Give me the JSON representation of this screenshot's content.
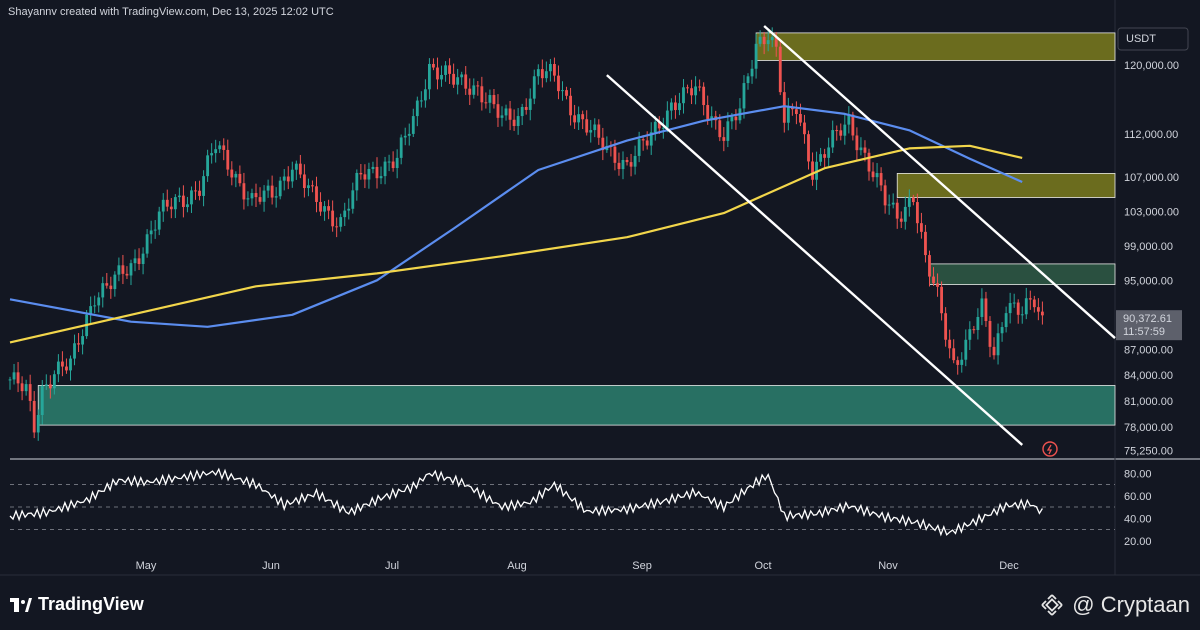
{
  "header": {
    "attribution": "Shayannv created with TradingView.com, Dec 13, 2025 12:02 UTC"
  },
  "currency_label": "USDT",
  "last_price_label": "90,372.61",
  "countdown_label": "11:57:59",
  "footer": {
    "brand": "TradingView",
    "watermark": "@ Cryptaan"
  },
  "colors": {
    "background": "#131722",
    "up_candle": "#26a69a",
    "down_candle": "#ef5350",
    "ma_blue": "#5b8def",
    "ma_yellow": "#f2d64b",
    "supply_zone": "#8a8a1e",
    "demand_zone": "#2b7a6a",
    "channel": "#ffffff"
  },
  "chart_data": [
    {
      "type": "candlestick",
      "price_axis": {
        "ticks": [
          120000,
          112000,
          107000,
          103000,
          99000,
          95000,
          87000,
          84000,
          81000,
          78000,
          75250
        ],
        "tick_labels": [
          "120,000.00",
          "112,000.00",
          "107,000.00",
          "103,000.00",
          "99,000.00",
          "95,000.00",
          "87,000.00",
          "84,000.00",
          "81,000.00",
          "78,000.00",
          "75,250.00"
        ],
        "range": [
          74500,
          124500
        ]
      },
      "time_axis": {
        "months": [
          "May",
          "Jun",
          "Jul",
          "Aug",
          "Sep",
          "Oct",
          "Nov",
          "Dec"
        ],
        "range": [
          "2025-04-01",
          "2025-12-13"
        ]
      },
      "series": [
        {
          "name": "",
          "kind": "close",
          "x": [
            "2025-04-01",
            "2025-04-05",
            "2025-04-07",
            "2025-04-09",
            "2025-04-12",
            "2025-04-16",
            "2025-04-22",
            "2025-04-26",
            "2025-05-01",
            "2025-05-08",
            "2025-05-12",
            "2025-05-18",
            "2025-05-22",
            "2025-05-26",
            "2025-05-31",
            "2025-06-05",
            "2025-06-10",
            "2025-06-15",
            "2025-06-22",
            "2025-06-27",
            "2025-07-03",
            "2025-07-06",
            "2025-07-10",
            "2025-07-14",
            "2025-07-20",
            "2025-07-26",
            "2025-08-01",
            "2025-08-05",
            "2025-08-10",
            "2025-08-14",
            "2025-08-19",
            "2025-08-25",
            "2025-09-01",
            "2025-09-06",
            "2025-09-12",
            "2025-09-18",
            "2025-09-25",
            "2025-09-29",
            "2025-10-03",
            "2025-10-06",
            "2025-10-08",
            "2025-10-10",
            "2025-10-13",
            "2025-10-17",
            "2025-10-22",
            "2025-10-26",
            "2025-10-30",
            "2025-11-04",
            "2025-11-07",
            "2025-11-11",
            "2025-11-14",
            "2025-11-17",
            "2025-11-21",
            "2025-11-24",
            "2025-11-28",
            "2025-12-01",
            "2025-12-04",
            "2025-12-08",
            "2025-12-11",
            "2025-12-13"
          ],
          "y": [
            83500,
            82000,
            78000,
            82500,
            84500,
            85000,
            93500,
            94500,
            96500,
            102500,
            104000,
            105800,
            110500,
            108000,
            104000,
            105000,
            108500,
            104500,
            101800,
            107000,
            108500,
            109000,
            113500,
            120000,
            118000,
            117500,
            113500,
            114000,
            119000,
            118500,
            114500,
            111000,
            108500,
            111000,
            115500,
            117000,
            112000,
            114500,
            122500,
            124000,
            121500,
            113000,
            115000,
            108000,
            111000,
            113500,
            109500,
            104000,
            102500,
            105000,
            97000,
            93000,
            85500,
            87500,
            91500,
            86500,
            92500,
            91000,
            92500,
            90372
          ]
        },
        {
          "name": "",
          "kind": "moving_average_blue",
          "x": [
            "2025-04-01",
            "2025-05-01",
            "2025-05-20",
            "2025-06-10",
            "2025-07-01",
            "2025-07-20",
            "2025-08-10",
            "2025-09-01",
            "2025-09-20",
            "2025-10-10",
            "2025-10-25",
            "2025-11-10",
            "2025-11-25",
            "2025-12-08"
          ],
          "y": [
            92800,
            90200,
            89600,
            91000,
            95000,
            101000,
            107800,
            111200,
            113500,
            115200,
            114300,
            112400,
            109100,
            106400
          ]
        },
        {
          "name": "",
          "kind": "moving_average_yellow",
          "x": [
            "2025-04-01",
            "2025-05-01",
            "2025-06-01",
            "2025-07-01",
            "2025-08-01",
            "2025-09-01",
            "2025-09-25",
            "2025-10-20",
            "2025-11-10",
            "2025-11-25",
            "2025-12-08"
          ],
          "y": [
            87800,
            91000,
            94300,
            95800,
            97800,
            100000,
            102800,
            108000,
            110300,
            110600,
            109200
          ]
        }
      ],
      "zones": [
        {
          "kind": "supply",
          "from": "2025-10-03",
          "to": "2025-12-31",
          "low": 120500,
          "high": 123700
        },
        {
          "kind": "supply",
          "from": "2025-11-07",
          "to": "2025-12-31",
          "low": 104600,
          "high": 107400
        },
        {
          "kind": "resistance",
          "from": "2025-11-15",
          "to": "2025-12-31",
          "low": 94500,
          "high": 96900
        },
        {
          "kind": "demand",
          "from": "2025-04-08",
          "to": "2025-12-31",
          "low": 78200,
          "high": 82800
        }
      ],
      "channel_lines": [
        {
          "x": [
            "2025-10-05",
            "2025-12-31"
          ],
          "y": [
            124500,
            88300
          ]
        },
        {
          "x": [
            "2025-08-27",
            "2025-12-08"
          ],
          "y": [
            118800,
            75900
          ]
        }
      ]
    },
    {
      "type": "line",
      "indicator": "oscillator",
      "y_ticks": [
        80,
        60,
        40,
        20
      ],
      "y_tick_labels": [
        "80.00",
        "60.00",
        "40.00",
        "20.00"
      ],
      "levels": [
        70,
        50,
        30
      ],
      "range": [
        10,
        90
      ],
      "series": [
        {
          "name": "",
          "x": [
            "2025-04-01",
            "2025-04-10",
            "2025-04-20",
            "2025-04-28",
            "2025-05-05",
            "2025-05-15",
            "2025-05-22",
            "2025-06-01",
            "2025-06-08",
            "2025-06-16",
            "2025-06-24",
            "2025-07-02",
            "2025-07-10",
            "2025-07-14",
            "2025-07-22",
            "2025-08-01",
            "2025-08-08",
            "2025-08-14",
            "2025-08-22",
            "2025-09-01",
            "2025-09-10",
            "2025-09-18",
            "2025-09-25",
            "2025-10-03",
            "2025-10-06",
            "2025-10-10",
            "2025-10-18",
            "2025-10-26",
            "2025-11-04",
            "2025-11-12",
            "2025-11-20",
            "2025-11-28",
            "2025-12-04",
            "2025-12-10",
            "2025-12-13"
          ],
          "y": [
            42,
            45,
            56,
            74,
            72,
            77,
            81,
            70,
            52,
            62,
            45,
            58,
            68,
            80,
            72,
            50,
            54,
            70,
            46,
            48,
            55,
            63,
            50,
            72,
            78,
            42,
            44,
            51,
            41,
            36,
            27,
            40,
            51,
            53,
            45
          ]
        }
      ]
    }
  ]
}
